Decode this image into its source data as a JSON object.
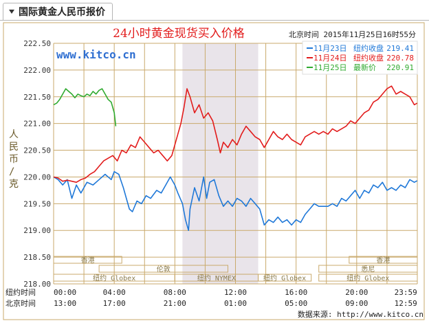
{
  "tab": {
    "label": "国际黄金人民币报价"
  },
  "header": {
    "title": "24小时黄金现货买入价格",
    "timestamp": "北京时间  2015年11月25日16时55分",
    "watermark": "www.kitco.cn"
  },
  "source": "数据来源: http://www.kitco.cn",
  "colors": {
    "nov23": "#1f78d8",
    "nov24": "#e21b1b",
    "nov25": "#2faa2f",
    "grid": "#c9a96b",
    "frame": "#c9a96b",
    "shade": "#e9e4ea"
  },
  "chart_data": {
    "type": "line",
    "title": "24小时黄金现货买入价格",
    "ylabel": "人民币/克",
    "ylim": [
      218.0,
      222.5
    ],
    "yticks": [
      "222.50",
      "222.00",
      "221.50",
      "221.00",
      "220.50",
      "220.00",
      "219.50",
      "219.00",
      "218.50",
      "218.00"
    ],
    "xlim": [
      0,
      24
    ],
    "x_rows": [
      {
        "label": "纽约时间",
        "ticks": [
          "00:00",
          "04:00",
          "08:00",
          "12:00",
          "16:00",
          "20:00",
          "23:59"
        ]
      },
      {
        "label": "北京时间",
        "ticks": [
          "13:00",
          "17:00",
          "21:00",
          "01:00",
          "05:00",
          "09:00",
          "12:59"
        ]
      }
    ],
    "shaded_x": [
      8.5,
      13.5
    ],
    "legend": {
      "placement": "top-right",
      "items": [
        {
          "date": "11月23日",
          "label": "纽约收盘",
          "value": "219.41"
        },
        {
          "date": "11月24日",
          "label": "纽约收盘",
          "value": "220.78"
        },
        {
          "date": "11月25日",
          "label": "最新价",
          "value": "220.91"
        }
      ]
    },
    "sessions": [
      {
        "name": "香港",
        "start": 0.0,
        "end": 4.5,
        "row": 1
      },
      {
        "name": "伦敦",
        "start": 3.0,
        "end": 11.5,
        "row": 2
      },
      {
        "name": "纽约 Globex",
        "start": 0.0,
        "end": 8.0,
        "row": 3
      },
      {
        "name": "纽约 NYMEX",
        "start": 8.0,
        "end": 13.5,
        "row": 3
      },
      {
        "name": "纽约 Globex",
        "start": 13.5,
        "end": 17.0,
        "row": 3
      },
      {
        "name": "香港",
        "start": 19.5,
        "end": 24.0,
        "row": 1
      },
      {
        "name": "悉尼",
        "start": 17.5,
        "end": 24.0,
        "row": 2
      },
      {
        "name": "纽约 Globex",
        "start": 17.5,
        "end": 24.0,
        "row": 3
      }
    ],
    "series": [
      {
        "name": "11月23日",
        "color": "#1f78d8",
        "points": [
          [
            0.0,
            220.0
          ],
          [
            0.3,
            219.95
          ],
          [
            0.6,
            219.85
          ],
          [
            0.9,
            219.95
          ],
          [
            1.2,
            219.6
          ],
          [
            1.5,
            219.85
          ],
          [
            1.8,
            219.7
          ],
          [
            2.2,
            219.9
          ],
          [
            2.6,
            219.85
          ],
          [
            3.0,
            219.95
          ],
          [
            3.4,
            220.05
          ],
          [
            3.8,
            219.95
          ],
          [
            4.0,
            220.1
          ],
          [
            4.3,
            220.05
          ],
          [
            4.6,
            219.8
          ],
          [
            4.8,
            219.6
          ],
          [
            5.0,
            219.4
          ],
          [
            5.2,
            219.35
          ],
          [
            5.5,
            219.55
          ],
          [
            5.8,
            219.5
          ],
          [
            6.1,
            219.65
          ],
          [
            6.4,
            219.6
          ],
          [
            6.8,
            219.75
          ],
          [
            7.1,
            219.7
          ],
          [
            7.4,
            219.85
          ],
          [
            7.7,
            220.0
          ],
          [
            8.0,
            219.85
          ],
          [
            8.2,
            219.7
          ],
          [
            8.5,
            219.5
          ],
          [
            8.7,
            219.2
          ],
          [
            8.9,
            219.0
          ],
          [
            9.0,
            219.4
          ],
          [
            9.3,
            219.8
          ],
          [
            9.6,
            219.55
          ],
          [
            9.9,
            220.0
          ],
          [
            10.1,
            219.6
          ],
          [
            10.3,
            219.9
          ],
          [
            10.6,
            219.95
          ],
          [
            10.9,
            219.65
          ],
          [
            11.2,
            219.45
          ],
          [
            11.5,
            219.55
          ],
          [
            11.8,
            219.45
          ],
          [
            12.1,
            219.6
          ],
          [
            12.4,
            219.55
          ],
          [
            12.7,
            219.45
          ],
          [
            13.0,
            219.6
          ],
          [
            13.3,
            219.5
          ],
          [
            13.6,
            219.4
          ],
          [
            13.9,
            219.1
          ],
          [
            14.2,
            219.2
          ],
          [
            14.5,
            219.15
          ],
          [
            14.8,
            219.25
          ],
          [
            15.1,
            219.15
          ],
          [
            15.4,
            219.2
          ],
          [
            15.7,
            219.1
          ],
          [
            16.0,
            219.2
          ],
          [
            16.3,
            219.15
          ],
          [
            16.6,
            219.3
          ],
          [
            16.9,
            219.4
          ],
          [
            17.2,
            219.5
          ],
          [
            17.5,
            219.45
          ],
          [
            17.8,
            219.45
          ],
          [
            18.1,
            219.45
          ],
          [
            18.4,
            219.5
          ],
          [
            18.7,
            219.45
          ],
          [
            19.0,
            219.6
          ],
          [
            19.3,
            219.55
          ],
          [
            19.6,
            219.65
          ],
          [
            19.9,
            219.75
          ],
          [
            20.2,
            219.6
          ],
          [
            20.5,
            219.75
          ],
          [
            20.8,
            219.7
          ],
          [
            21.1,
            219.85
          ],
          [
            21.4,
            219.8
          ],
          [
            21.7,
            219.9
          ],
          [
            22.0,
            219.75
          ],
          [
            22.3,
            219.8
          ],
          [
            22.6,
            219.75
          ],
          [
            22.9,
            219.85
          ],
          [
            23.2,
            219.8
          ],
          [
            23.5,
            219.95
          ],
          [
            23.8,
            219.9
          ],
          [
            23.99,
            219.93
          ]
        ]
      },
      {
        "name": "11月24日",
        "color": "#e21b1b",
        "points": [
          [
            0.0,
            220.0
          ],
          [
            0.3,
            219.98
          ],
          [
            0.6,
            219.92
          ],
          [
            0.9,
            219.94
          ],
          [
            1.2,
            219.92
          ],
          [
            1.5,
            219.9
          ],
          [
            1.8,
            219.95
          ],
          [
            2.1,
            219.98
          ],
          [
            2.4,
            220.05
          ],
          [
            2.7,
            220.1
          ],
          [
            3.0,
            220.2
          ],
          [
            3.3,
            220.3
          ],
          [
            3.6,
            220.35
          ],
          [
            3.9,
            220.4
          ],
          [
            4.2,
            220.3
          ],
          [
            4.5,
            220.5
          ],
          [
            4.8,
            220.45
          ],
          [
            5.1,
            220.6
          ],
          [
            5.4,
            220.55
          ],
          [
            5.7,
            220.75
          ],
          [
            6.0,
            220.65
          ],
          [
            6.3,
            220.55
          ],
          [
            6.6,
            220.45
          ],
          [
            6.9,
            220.5
          ],
          [
            7.2,
            220.4
          ],
          [
            7.5,
            220.3
          ],
          [
            7.8,
            220.4
          ],
          [
            8.0,
            220.6
          ],
          [
            8.2,
            220.8
          ],
          [
            8.4,
            221.0
          ],
          [
            8.6,
            221.3
          ],
          [
            8.8,
            221.65
          ],
          [
            9.0,
            221.5
          ],
          [
            9.3,
            221.2
          ],
          [
            9.6,
            221.35
          ],
          [
            9.9,
            221.1
          ],
          [
            10.2,
            221.2
          ],
          [
            10.5,
            221.05
          ],
          [
            10.8,
            220.7
          ],
          [
            11.0,
            220.45
          ],
          [
            11.2,
            220.65
          ],
          [
            11.5,
            220.55
          ],
          [
            11.8,
            220.7
          ],
          [
            12.1,
            220.6
          ],
          [
            12.4,
            220.8
          ],
          [
            12.7,
            220.95
          ],
          [
            13.0,
            220.85
          ],
          [
            13.3,
            220.75
          ],
          [
            13.6,
            220.7
          ],
          [
            13.9,
            220.55
          ],
          [
            14.2,
            220.7
          ],
          [
            14.5,
            220.85
          ],
          [
            14.8,
            220.75
          ],
          [
            15.1,
            220.7
          ],
          [
            15.4,
            220.8
          ],
          [
            15.7,
            220.7
          ],
          [
            16.0,
            220.65
          ],
          [
            16.3,
            220.6
          ],
          [
            16.6,
            220.75
          ],
          [
            16.9,
            220.8
          ],
          [
            17.2,
            220.85
          ],
          [
            17.5,
            220.8
          ],
          [
            17.8,
            220.85
          ],
          [
            18.1,
            220.8
          ],
          [
            18.4,
            220.9
          ],
          [
            18.7,
            220.85
          ],
          [
            19.0,
            220.9
          ],
          [
            19.3,
            220.95
          ],
          [
            19.6,
            221.05
          ],
          [
            19.9,
            221.0
          ],
          [
            20.2,
            221.1
          ],
          [
            20.5,
            221.2
          ],
          [
            20.8,
            221.25
          ],
          [
            21.1,
            221.4
          ],
          [
            21.4,
            221.45
          ],
          [
            21.7,
            221.55
          ],
          [
            22.0,
            221.65
          ],
          [
            22.3,
            221.7
          ],
          [
            22.6,
            221.55
          ],
          [
            22.9,
            221.6
          ],
          [
            23.2,
            221.55
          ],
          [
            23.5,
            221.5
          ],
          [
            23.8,
            221.35
          ],
          [
            23.99,
            221.38
          ]
        ]
      },
      {
        "name": "11月25日",
        "color": "#2faa2f",
        "points": [
          [
            0.0,
            221.35
          ],
          [
            0.2,
            221.38
          ],
          [
            0.4,
            221.45
          ],
          [
            0.6,
            221.55
          ],
          [
            0.8,
            221.65
          ],
          [
            1.0,
            221.6
          ],
          [
            1.2,
            221.55
          ],
          [
            1.4,
            221.48
          ],
          [
            1.6,
            221.55
          ],
          [
            1.8,
            221.52
          ],
          [
            2.0,
            221.5
          ],
          [
            2.2,
            221.55
          ],
          [
            2.4,
            221.52
          ],
          [
            2.6,
            221.6
          ],
          [
            2.8,
            221.55
          ],
          [
            3.0,
            221.62
          ],
          [
            3.2,
            221.65
          ],
          [
            3.4,
            221.55
          ],
          [
            3.6,
            221.45
          ],
          [
            3.8,
            221.4
          ],
          [
            4.0,
            221.2
          ],
          [
            4.1,
            220.95
          ]
        ]
      }
    ]
  }
}
